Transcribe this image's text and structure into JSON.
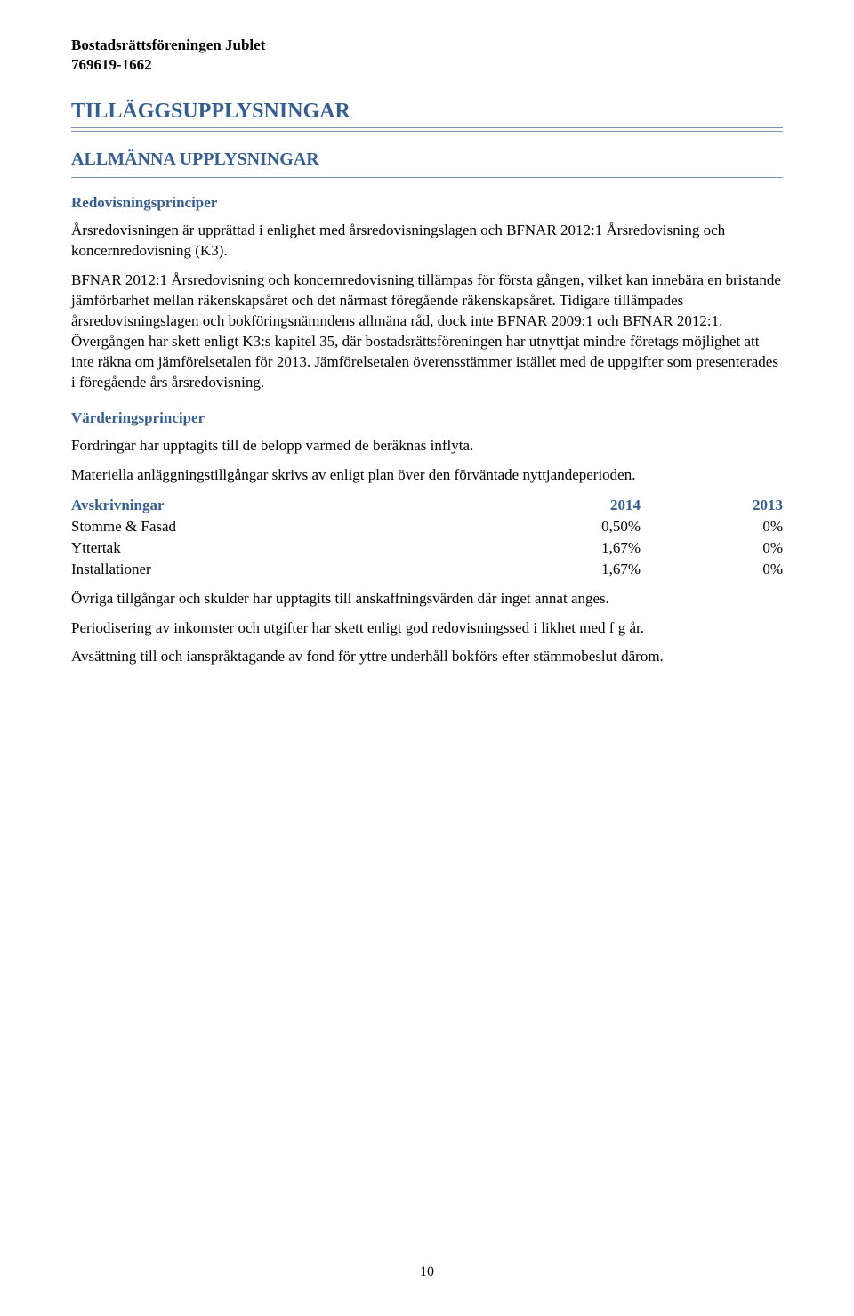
{
  "header": {
    "org_name": "Bostadsrättsföreningen Jublet",
    "org_number": "769619-1662"
  },
  "titles": {
    "main": "TILLÄGGSUPPLYSNINGAR",
    "section_allmanna": "ALLMÄNNA UPPLYSNINGAR",
    "h3_redovisning": "Redovisningsprinciper",
    "h3_vardering": "Värderingsprinciper",
    "table_header": "Avskrivningar"
  },
  "paragraphs": {
    "redov_p1": "Årsredovisningen är upprättad i enlighet med årsredovisningslagen och BFNAR 2012:1 Årsredovisning och koncernredovisning (K3).",
    "redov_p2": "BFNAR 2012:1 Årsredovisning och koncernredovisning tillämpas för första gången, vilket kan innebära en bristande jämförbarhet mellan räkenskapsåret och det närmast föregående räkenskapsåret. Tidigare tillämpades årsredovisningslagen och bokföringsnämndens allmäna råd, dock inte BFNAR 2009:1 och BFNAR 2012:1. Övergången har skett enligt K3:s kapitel 35, där bostadsrättsföreningen har utnyttjat mindre företags möjlighet att inte räkna om jämförelsetalen för 2013. Jämförelsetalen överensstämmer istället med de uppgifter som presenterades i föregående års årsredovisning.",
    "vard_p1": "Fordringar har upptagits till de belopp varmed de beräknas inflyta.",
    "vard_p2": "Materiella anläggningstillgångar skrivs av enligt plan över den förväntade nyttjandeperioden.",
    "after_table_p1": "Övriga tillgångar och skulder har upptagits till anskaffningsvärden där inget annat anges.",
    "after_table_p2": "Periodisering av inkomster och utgifter har skett enligt god redovisningssed i likhet med f g år.",
    "after_table_p3": "Avsättning till och ianspråktagande av fond för yttre underhåll bokförs efter stämmobeslut därom."
  },
  "table": {
    "year1": "2014",
    "year2": "2013",
    "rows": [
      {
        "label": "Stomme & Fasad",
        "y1": "0,50%",
        "y2": "0%"
      },
      {
        "label": "Yttertak",
        "y1": "1,67%",
        "y2": "0%"
      },
      {
        "label": "Installationer",
        "y1": "1,67%",
        "y2": "0%"
      }
    ]
  },
  "colors": {
    "heading_blue": "#365f91",
    "rule_blue": "#7a94b8",
    "text_black": "#000000",
    "background": "#ffffff"
  },
  "page_number": "10"
}
